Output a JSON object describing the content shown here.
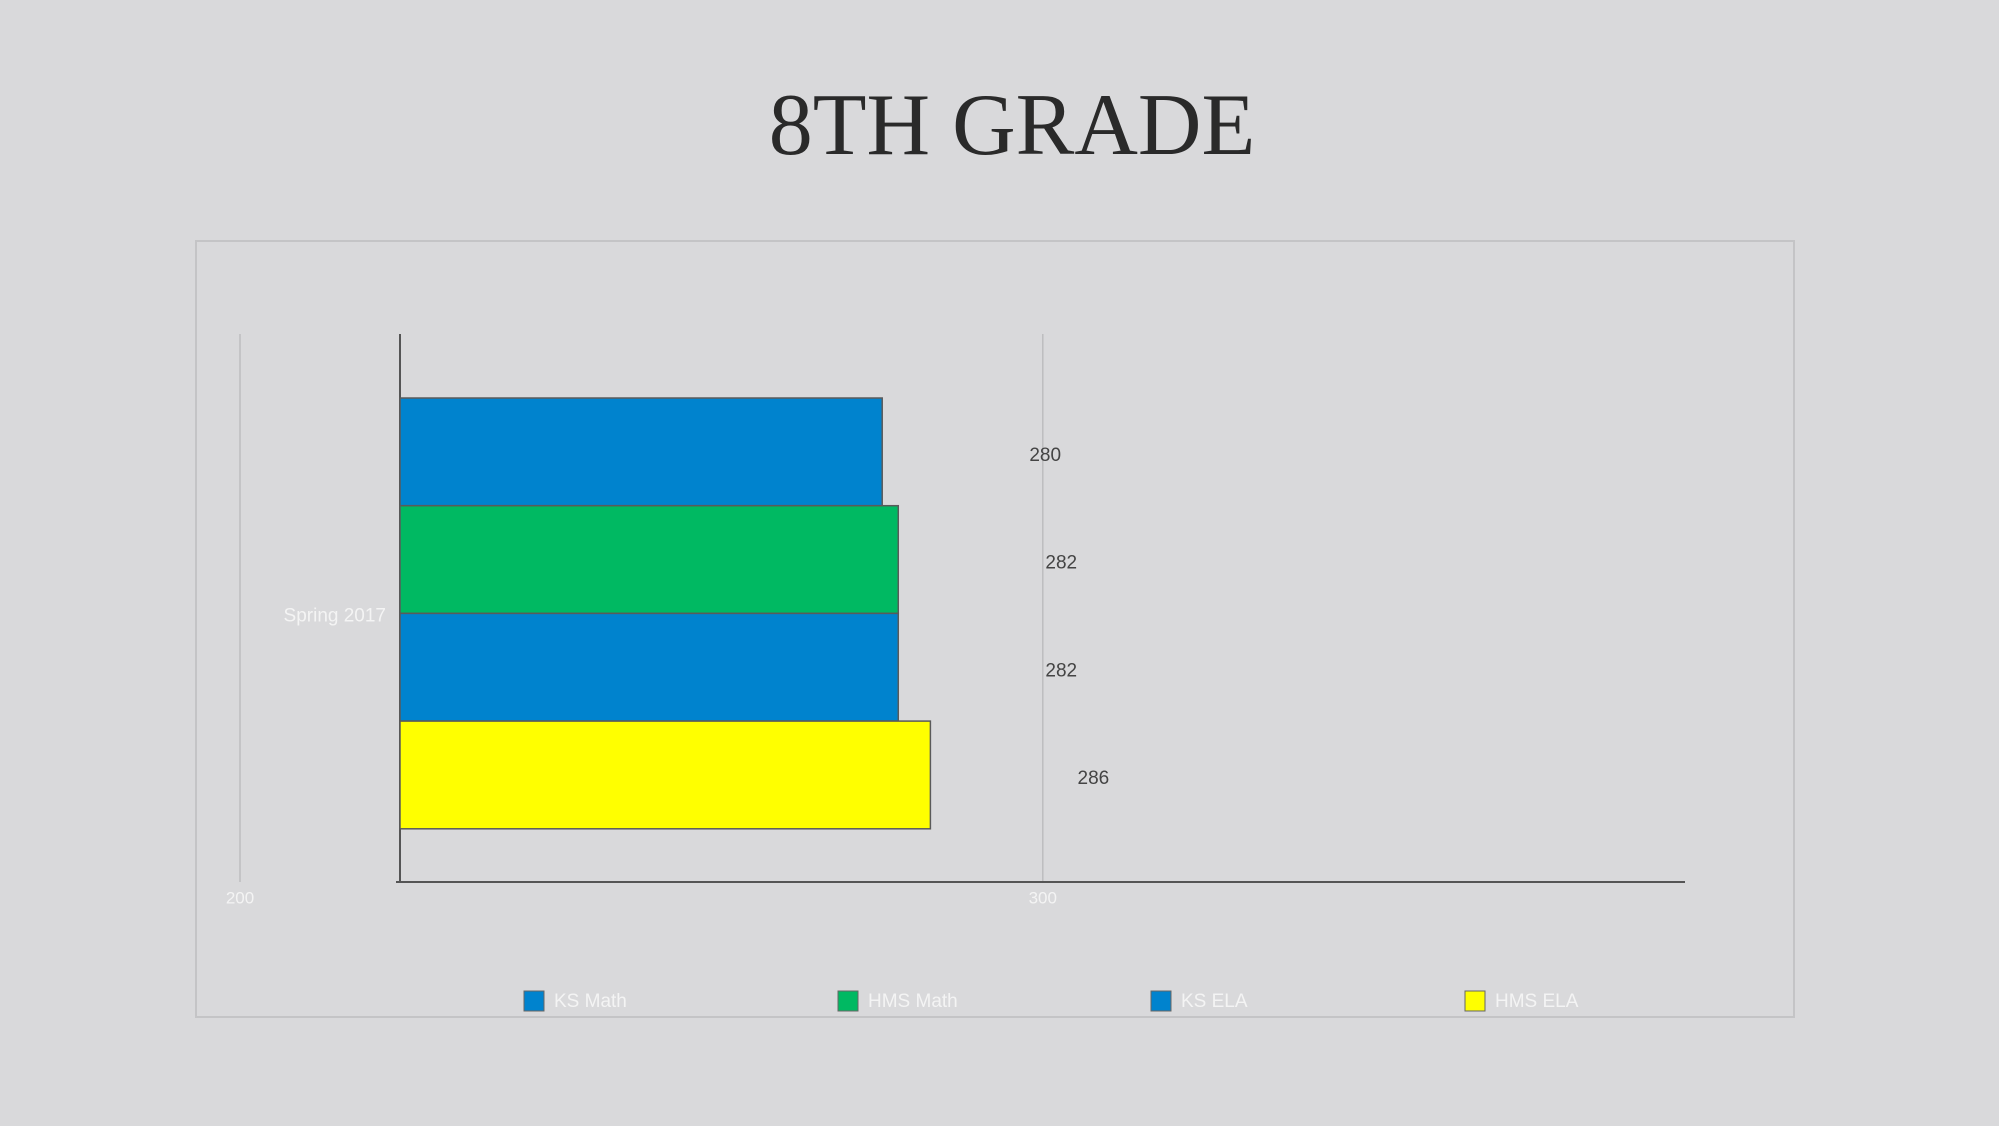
{
  "chart_data": {
    "type": "bar",
    "orientation": "horizontal",
    "title": "8TH GRADE",
    "categories": [
      "Spring 2017"
    ],
    "series": [
      {
        "name": "KS Math",
        "color": "#0083ce",
        "values": [
          280
        ]
      },
      {
        "name": "HMS Math",
        "color": "#00b962",
        "values": [
          282
        ]
      },
      {
        "name": "KS ELA",
        "color": "#0083ce",
        "values": [
          282
        ]
      },
      {
        "name": "HMS ELA",
        "color": "#ffff00",
        "values": [
          286
        ]
      }
    ],
    "xlim": [
      200,
      380
    ],
    "xticks": [
      200,
      300
    ],
    "grid": true,
    "legend": "bottom"
  }
}
